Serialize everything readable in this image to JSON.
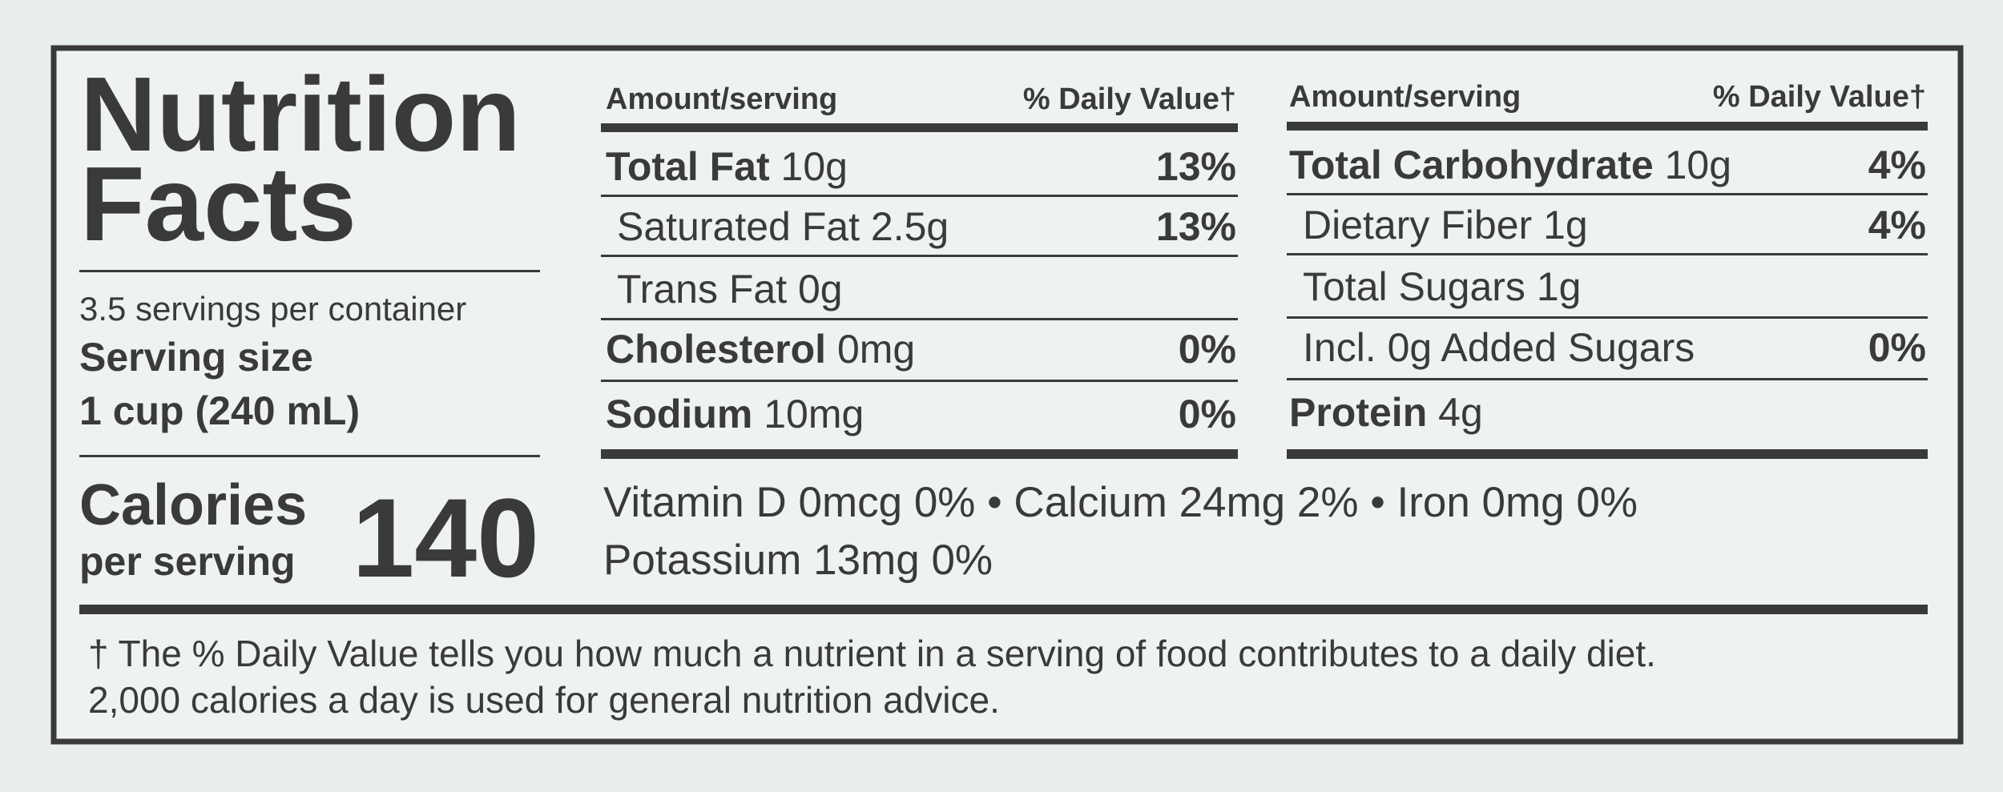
{
  "title_line1": "Nutrition",
  "title_line2": "Facts",
  "servings": "3.5 servings per container",
  "serving_size_label": "Serving size",
  "serving_size": "1 cup (240 mL)",
  "calories_label": "Calories",
  "calories_sub": "per serving",
  "calories": "140",
  "left_table": {
    "header": [
      "Amount/serving",
      "% Daily Value†"
    ],
    "rows": [
      {
        "nutrient": "Total Fat",
        "amount": "10g",
        "dv": "13%"
      },
      {
        "nutrient": "Saturated Fat",
        "amount": "2.5g",
        "dv": "13%"
      },
      {
        "nutrient": "Trans Fat",
        "amount": "0g"
      },
      {
        "nutrient": "Cholesterol",
        "amount": "0mg",
        "dv": "0%"
      },
      {
        "nutrient": "Sodium",
        "amount": "10mg",
        "dv": "0%"
      }
    ]
  },
  "right_table": {
    "header": [
      "Amount/serving",
      "% Daily Value†"
    ],
    "rows": [
      {
        "nutrient": "Total Carbohydrate",
        "amount": "10g",
        "dv": "4%"
      },
      {
        "nutrient": "Dietary Fiber",
        "amount": "1g",
        "dv": "4%"
      },
      {
        "nutrient": "Total Sugars",
        "amount": "1g"
      },
      {
        "nutrient": "Incl. 0g Added Sugars",
        "dv": "0%"
      },
      {
        "nutrient": "Protein",
        "amount": "4g"
      }
    ]
  },
  "micronutrients": [
    "Vitamin D 0mcg 0% • Calcium 24mg 2% • Iron 0mg 0%",
    "Potassium 13mg 0%"
  ],
  "footnote": [
    "† The % Daily Value tells you how much a nutrient in a serving of food contributes to a daily diet.",
    "2,000 calories a day is used for general nutrition advice."
  ]
}
